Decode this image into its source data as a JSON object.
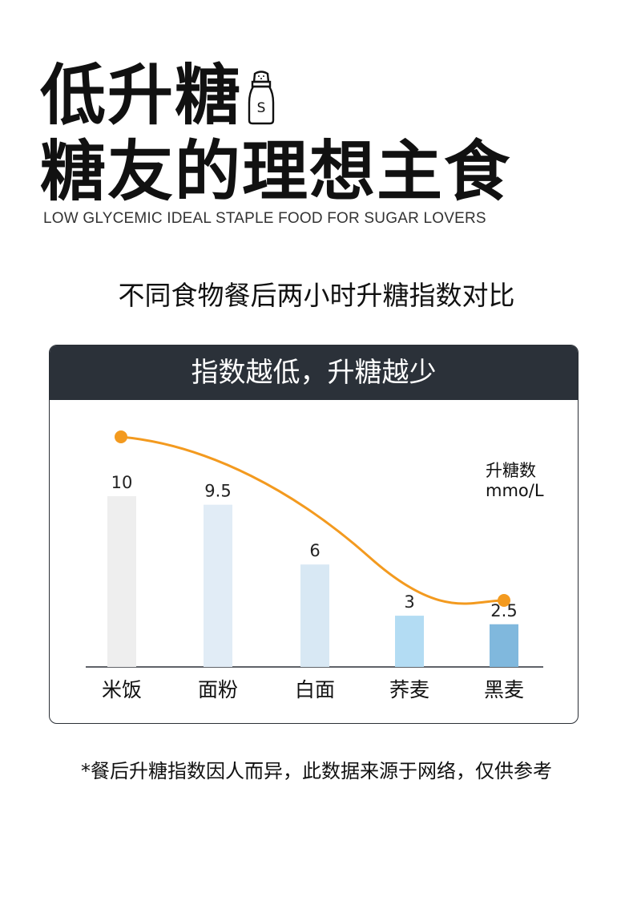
{
  "hero": {
    "line1": "低升糖",
    "line2": "糖友的理想主食",
    "subtitle_en": "LOW GLYCEMIC IDEAL STAPLE FOOD FOR SUGAR LOVERS",
    "shaker_letter": "S",
    "shaker_icon": "salt-shaker-icon"
  },
  "compare_title": "不同食物餐后两小时升糖指数对比",
  "panel": {
    "header": "指数越低，升糖越少"
  },
  "chart_data": {
    "type": "bar",
    "categories": [
      "米饭",
      "面粉",
      "白面",
      "荞麦",
      "黑麦"
    ],
    "values": [
      10,
      9.5,
      6,
      3,
      2.5
    ],
    "value_labels": [
      "10",
      "9.5",
      "6",
      "3",
      "2.5"
    ],
    "unit_label": [
      "升糖数",
      "mmo/L"
    ],
    "bar_colors": [
      "#eeeeee",
      "#e1ecf6",
      "#d8e8f4",
      "#b3dcf3",
      "#80b8dd"
    ],
    "trend_color": "#f39a1f",
    "ylim": [
      0,
      10
    ],
    "grid": false
  },
  "footnote": "*餐后升糖指数因人而异，此数据来源于网络，仅供参考"
}
